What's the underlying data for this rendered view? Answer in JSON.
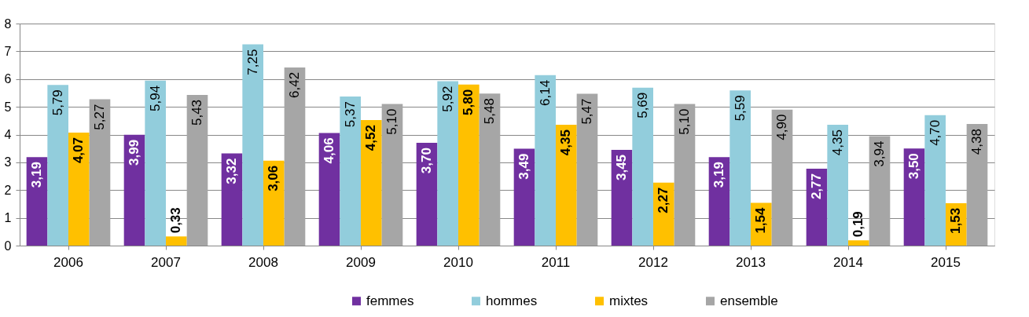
{
  "chart_data": {
    "type": "bar",
    "categories": [
      "2006",
      "2007",
      "2008",
      "2009",
      "2010",
      "2011",
      "2012",
      "2013",
      "2014",
      "2015"
    ],
    "series": [
      {
        "name": "femmes",
        "color": "#7030a0",
        "values": [
          3.19,
          3.99,
          3.32,
          4.06,
          3.7,
          3.49,
          3.45,
          3.19,
          2.77,
          3.5
        ],
        "value_labels": [
          "3,19",
          "3,99",
          "3,32",
          "4,06",
          "3,70",
          "3,49",
          "3,45",
          "3,19",
          "2,77",
          "3,50"
        ]
      },
      {
        "name": "hommes",
        "color": "#92cddc",
        "values": [
          5.79,
          5.94,
          7.25,
          5.37,
          5.92,
          6.14,
          5.69,
          5.59,
          4.35,
          4.7
        ],
        "value_labels": [
          "5,79",
          "5,94",
          "7,25",
          "5,37",
          "5,92",
          "6,14",
          "5,69",
          "5,59",
          "4,35",
          "4,70"
        ]
      },
      {
        "name": "mixtes",
        "color": "#ffc000",
        "values": [
          4.07,
          0.33,
          3.06,
          4.52,
          5.8,
          4.35,
          2.27,
          1.54,
          0.19,
          1.53
        ],
        "value_labels": [
          "4,07",
          "0,33",
          "3,06",
          "4,52",
          "5,80",
          "4,35",
          "2,27",
          "1,54",
          "0,19",
          "1,53"
        ]
      },
      {
        "name": "ensemble",
        "color": "#a6a6a6",
        "values": [
          5.27,
          5.43,
          6.42,
          5.1,
          5.48,
          5.47,
          5.1,
          4.9,
          3.94,
          4.38
        ],
        "value_labels": [
          "5,27",
          "5,43",
          "6,42",
          "5,10",
          "5,48",
          "5,47",
          "5,10",
          "4,90",
          "3,94",
          "4,38"
        ]
      }
    ],
    "ylim": [
      0,
      8
    ],
    "yticks": [
      0,
      1,
      2,
      3,
      4,
      5,
      6,
      7,
      8
    ],
    "grid": "y",
    "legend": "bottom"
  }
}
